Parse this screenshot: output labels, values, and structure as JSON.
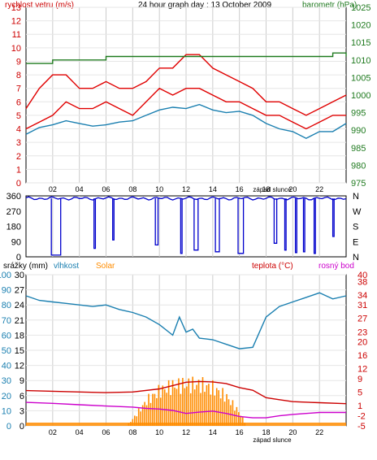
{
  "chart_data": [
    {
      "type": "line",
      "title": "24 hour graph day : 13 October 2009",
      "ylabel_left": "rychlost vetru (m/s)",
      "ylabel_right": "barometr (hPa)",
      "ylim_left": [
        0,
        13
      ],
      "ylim_right": [
        975,
        1025
      ],
      "yticks_left": [
        0,
        1,
        2,
        3,
        4,
        5,
        6,
        7,
        8,
        9,
        10,
        11,
        12,
        13
      ],
      "yticks_right": [
        975,
        980,
        985,
        990,
        995,
        1000,
        1005,
        1010,
        1015,
        1020,
        1025
      ],
      "x_ticks": [
        "02",
        "04",
        "06",
        "08",
        "10",
        "12",
        "14",
        "16",
        "18",
        "20",
        "22"
      ],
      "annotation": "západ slunce",
      "series": [
        {
          "color": "#e00000",
          "axis": "left",
          "x": [
            0,
            1,
            2,
            3,
            4,
            5,
            6,
            7,
            8,
            9,
            10,
            11,
            12,
            13,
            14,
            15,
            16,
            17,
            18,
            19,
            20,
            21,
            22,
            23,
            24
          ],
          "values": [
            5.5,
            7,
            8,
            8,
            7,
            7,
            7.5,
            7,
            7,
            7.5,
            8.5,
            8.5,
            9.5,
            9.5,
            8.5,
            8,
            7.5,
            7,
            6,
            6,
            5.5,
            5,
            5.5,
            6,
            6.5
          ]
        },
        {
          "color": "#e00000",
          "axis": "left",
          "x": [
            0,
            1,
            2,
            3,
            4,
            5,
            6,
            7,
            8,
            9,
            10,
            11,
            12,
            13,
            14,
            15,
            16,
            17,
            18,
            19,
            20,
            21,
            22,
            23,
            24
          ],
          "values": [
            4,
            4.5,
            5,
            6,
            5.5,
            5.5,
            6,
            5.5,
            5,
            6,
            7,
            6.5,
            7,
            7,
            6.5,
            6,
            6,
            5.5,
            5,
            5,
            4.5,
            4,
            4.5,
            5,
            5
          ]
        },
        {
          "color": "#1a7fb0",
          "axis": "left",
          "x": [
            0,
            1,
            2,
            3,
            4,
            5,
            6,
            7,
            8,
            9,
            10,
            11,
            12,
            13,
            14,
            15,
            16,
            17,
            18,
            19,
            20,
            21,
            22,
            23,
            24
          ],
          "values": [
            3.6,
            4.1,
            4.3,
            4.6,
            4.4,
            4.2,
            4.3,
            4.5,
            4.6,
            5,
            5.4,
            5.6,
            5.5,
            5.8,
            5.4,
            5.2,
            5.3,
            5.0,
            4.4,
            4.0,
            3.8,
            3.3,
            3.8,
            3.8,
            4.4
          ]
        },
        {
          "color": "#1f7a1f",
          "axis": "right",
          "x": [
            0,
            2,
            4,
            6,
            8,
            10,
            12,
            14,
            16,
            18,
            20,
            22,
            23,
            24
          ],
          "values": [
            1009,
            1010,
            1010,
            1011,
            1011,
            1011,
            1011,
            1011,
            1011,
            1011,
            1011,
            1011,
            1012,
            1011
          ]
        }
      ]
    },
    {
      "type": "scatter",
      "ylim": [
        0,
        360
      ],
      "yticks_left": [
        0,
        90,
        180,
        270,
        360
      ],
      "yticks_right": [
        "N",
        "E",
        "S",
        "W",
        "N"
      ],
      "x_ticks": [
        "02",
        "04",
        "06",
        "08",
        "10",
        "12",
        "14",
        "16",
        "18",
        "20",
        "22"
      ],
      "baseline_deg": 345,
      "baseline_color": "#0000cc",
      "drops": [
        {
          "x_start": 1.9,
          "x_end": 2.6,
          "value": 10
        },
        {
          "x_start": 5.1,
          "x_end": 5.2,
          "value": 50
        },
        {
          "x_start": 6.5,
          "x_end": 6.6,
          "value": 100
        },
        {
          "x_start": 9.7,
          "x_end": 9.9,
          "value": 70
        },
        {
          "x_start": 11.6,
          "x_end": 11.7,
          "value": 20
        },
        {
          "x_start": 12.6,
          "x_end": 12.9,
          "value": 40
        },
        {
          "x_start": 14.2,
          "x_end": 14.5,
          "value": 30
        },
        {
          "x_start": 15.9,
          "x_end": 16.3,
          "value": 20
        },
        {
          "x_start": 18.6,
          "x_end": 18.8,
          "value": 80
        },
        {
          "x_start": 19.4,
          "x_end": 19.5,
          "value": 40
        },
        {
          "x_start": 20.2,
          "x_end": 20.3,
          "value": 25
        },
        {
          "x_start": 20.8,
          "x_end": 20.9,
          "value": 30
        },
        {
          "x_start": 21.6,
          "x_end": 21.7,
          "value": 20
        },
        {
          "x_start": 23.0,
          "x_end": 23.1,
          "value": 120
        }
      ]
    },
    {
      "type": "line",
      "ylabel_left_1": "srážky (mm)",
      "ylabel_left_2": "vlhkost",
      "ylabel_left_3": "Solar",
      "ylabel_right_1": "teplota (°C)",
      "ylabel_right_2": "rosný bod",
      "yticks_precip": [
        0,
        3,
        6,
        9,
        12,
        15,
        18,
        21,
        24,
        27,
        30
      ],
      "yticks_humidity": [
        0,
        10,
        20,
        30,
        40,
        50,
        60,
        70,
        80,
        90,
        100
      ],
      "yticks_temp": [
        -5,
        -2,
        1,
        5,
        9,
        12,
        16,
        20,
        23,
        27,
        31,
        34,
        38,
        40
      ],
      "ylim_humidity": [
        0,
        100
      ],
      "ylim_temp": [
        -5,
        40
      ],
      "x_ticks": [
        "02",
        "04",
        "06",
        "08",
        "10",
        "12",
        "14",
        "16",
        "18",
        "20",
        "22"
      ],
      "annotation": "západ slunce",
      "series": [
        {
          "color": "#1a7fb0",
          "axis": "humidity",
          "x": [
            0,
            1,
            2,
            3,
            4,
            5,
            6,
            7,
            8,
            9,
            10,
            11,
            11.5,
            12,
            12.5,
            13,
            14,
            15,
            16,
            17,
            18,
            19,
            20,
            21,
            22,
            23,
            24
          ],
          "values": [
            86,
            83,
            82,
            81,
            80,
            79,
            80,
            77,
            75,
            72,
            67,
            60,
            72,
            62,
            64,
            58,
            57,
            54,
            51,
            52,
            72,
            79,
            82,
            85,
            88,
            84,
            86
          ]
        },
        {
          "color": "#cc0000",
          "axis": "temp",
          "x": [
            0,
            2,
            4,
            6,
            8,
            10,
            11,
            12,
            13,
            14,
            15,
            16,
            17,
            18,
            19,
            20,
            22,
            24
          ],
          "values": [
            5.5,
            5.3,
            5.1,
            4.9,
            5.1,
            6,
            7,
            8,
            8.2,
            8.1,
            7.6,
            6.4,
            5.6,
            3.4,
            2.8,
            2.2,
            1.9,
            1.6
          ]
        },
        {
          "color": "#cc00cc",
          "axis": "temp",
          "x": [
            0,
            2,
            4,
            6,
            8,
            9,
            10,
            11,
            12,
            13,
            14,
            15,
            16,
            17,
            18,
            19,
            20,
            22,
            24
          ],
          "values": [
            2.0,
            1.7,
            1.3,
            0.9,
            0.6,
            0.2,
            0.0,
            -0.4,
            -1.3,
            -0.9,
            -0.6,
            -1.3,
            -2.2,
            -2.6,
            -2.6,
            -2.0,
            -1.6,
            -1.0,
            -1.0
          ]
        }
      ],
      "solar": {
        "color": "#ff8c00",
        "x": [
          7.5,
          8,
          9,
          10,
          11,
          12,
          13,
          14,
          15,
          16,
          16.5
        ],
        "values": [
          0,
          6,
          20,
          28,
          32,
          33,
          33,
          30,
          23,
          10,
          0
        ]
      }
    }
  ]
}
